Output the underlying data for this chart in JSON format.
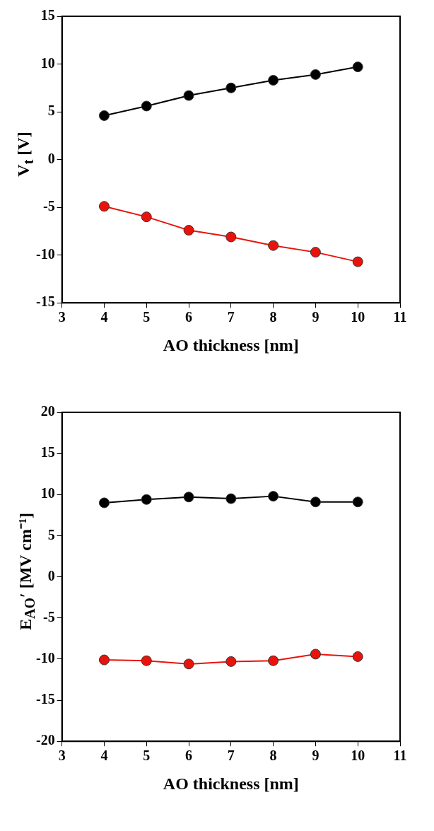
{
  "chart_data": [
    {
      "type": "line",
      "xlabel": "AO thickness [nm]",
      "ylabel": "V$_{t}$ [V]",
      "x": [
        4,
        5,
        6,
        7,
        8,
        9,
        10
      ],
      "xlim": [
        3,
        11
      ],
      "xticks": [
        3,
        4,
        5,
        6,
        7,
        8,
        9,
        10,
        11
      ],
      "ylim": [
        -15,
        15
      ],
      "yticks": [
        -15,
        -10,
        -5,
        0,
        5,
        10,
        15
      ],
      "grid": false,
      "legend": false,
      "marker": "circle",
      "series": [
        {
          "color": "#000000",
          "values": [
            4.6,
            5.6,
            6.7,
            7.5,
            8.3,
            8.9,
            9.7
          ]
        },
        {
          "color": "#e8140c",
          "values": [
            -4.9,
            -6.0,
            -7.4,
            -8.1,
            -9.0,
            -9.7,
            -10.7
          ]
        }
      ]
    },
    {
      "type": "line",
      "xlabel": "AO thickness [nm]",
      "ylabel": "E$_{AO}$′ [MV cm⁻¹]",
      "x": [
        4,
        5,
        6,
        7,
        8,
        9,
        10
      ],
      "xlim": [
        3,
        11
      ],
      "xticks": [
        3,
        4,
        5,
        6,
        7,
        8,
        9,
        10,
        11
      ],
      "ylim": [
        -20,
        20
      ],
      "yticks": [
        -20,
        -15,
        -10,
        -5,
        0,
        5,
        10,
        15,
        20
      ],
      "grid": false,
      "legend": false,
      "marker": "circle",
      "series": [
        {
          "color": "#000000",
          "values": [
            9.0,
            9.4,
            9.7,
            9.5,
            9.8,
            9.1,
            9.1
          ]
        },
        {
          "color": "#e8140c",
          "values": [
            -10.1,
            -10.2,
            -10.6,
            -10.3,
            -10.2,
            -9.4,
            -9.7
          ]
        }
      ]
    }
  ]
}
